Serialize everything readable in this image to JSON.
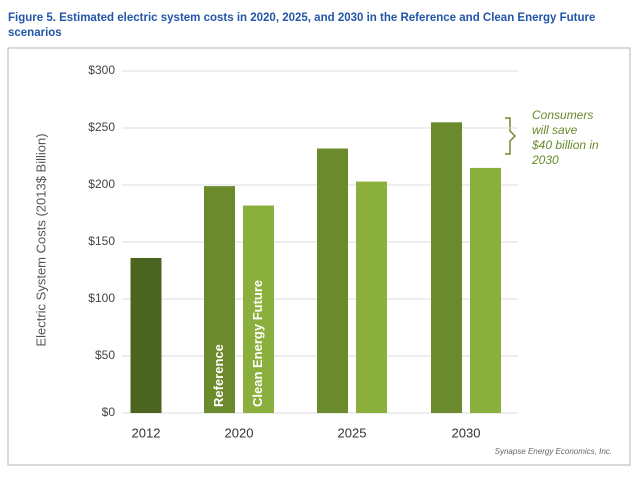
{
  "chart_data": {
    "type": "bar",
    "title": "Figure 5. Estimated electric system costs in 2020, 2025, and 2030 in the Reference and Clean Energy Future scenarios",
    "y_label": "Electric System Costs (2013$ Billion)",
    "categories": [
      "2012",
      "2020",
      "2025",
      "2030"
    ],
    "series": [
      {
        "name": "Reference",
        "color": "#6a8a2c",
        "point_colors": [
          "#4b6420",
          "#6a8a2c",
          "#6a8a2c",
          "#6a8a2c"
        ],
        "values": [
          136,
          199,
          232,
          255
        ]
      },
      {
        "name": "Clean Energy Future",
        "color": "#8aaf3c",
        "values": [
          null,
          182,
          203,
          215
        ]
      }
    ],
    "ylim": [
      0,
      300
    ],
    "yticks": [
      {
        "value": 0,
        "label": "$0"
      },
      {
        "value": 50,
        "label": "$50"
      },
      {
        "value": 100,
        "label": "$100"
      },
      {
        "value": 150,
        "label": "$150"
      },
      {
        "value": 200,
        "label": "$200"
      },
      {
        "value": 250,
        "label": "$250"
      },
      {
        "value": 300,
        "label": "$300"
      }
    ],
    "grid": true,
    "annotation": [
      "Consumers",
      "will save",
      "$40 billion in",
      "2030"
    ],
    "source": "Synapse Energy Economics, Inc."
  }
}
